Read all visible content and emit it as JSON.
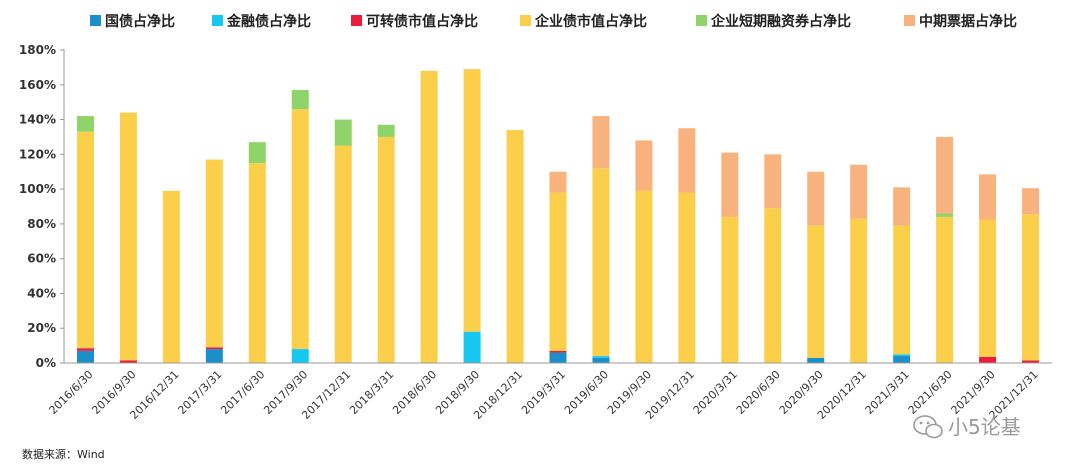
{
  "chart_data": {
    "type": "bar",
    "stacked": true,
    "title": "",
    "xlabel": "",
    "ylabel": "",
    "ylim": [
      0,
      180
    ],
    "y_ticks": [
      "0%",
      "20%",
      "40%",
      "60%",
      "80%",
      "100%",
      "120%",
      "140%",
      "160%",
      "180%"
    ],
    "grid": false,
    "legend_position": "top",
    "categories": [
      "2016/6/30",
      "2016/9/30",
      "2016/12/31",
      "2017/3/31",
      "2017/6/30",
      "2017/9/30",
      "2017/12/31",
      "2018/3/31",
      "2018/6/30",
      "2018/9/30",
      "2018/12/31",
      "2019/3/31",
      "2019/6/30",
      "2019/9/30",
      "2019/12/31",
      "2020/3/31",
      "2020/6/30",
      "2020/9/30",
      "2020/12/31",
      "2021/3/31",
      "2021/6/30",
      "2021/9/30",
      "2021/12/31"
    ],
    "series": [
      {
        "name": "国债占净比",
        "color": "#1a8fc9",
        "values": [
          7,
          0,
          0,
          8,
          0,
          0,
          0,
          0,
          0,
          0,
          0,
          6,
          3,
          0,
          0,
          0,
          0,
          3,
          0,
          4,
          0,
          0,
          0
        ]
      },
      {
        "name": "金融债占净比",
        "color": "#16c8f0",
        "values": [
          0,
          0,
          0,
          0,
          0,
          8,
          0,
          0,
          0,
          18,
          0,
          0,
          1,
          0,
          0,
          0,
          0,
          0,
          0,
          1,
          0,
          0,
          0
        ]
      },
      {
        "name": "可转债市值占净比",
        "color": "#ec1c3c",
        "values": [
          1.5,
          1.5,
          0,
          1,
          0,
          0,
          0,
          0,
          0,
          0,
          0,
          1,
          0,
          0,
          0,
          0,
          0,
          0,
          0,
          0,
          0,
          3.5,
          1.5
        ]
      },
      {
        "name": "企业债市值占净比",
        "color": "#fbcf4a",
        "values": [
          124.5,
          142.5,
          99,
          108,
          115,
          138,
          125,
          130,
          168,
          151,
          134,
          91,
          108,
          99,
          98,
          84,
          89,
          76,
          83,
          74,
          84,
          79,
          84
        ]
      },
      {
        "name": "企业短期融资券占净比",
        "color": "#8fd46a",
        "values": [
          9,
          0,
          0,
          0,
          12,
          11,
          15,
          7,
          0,
          0,
          0,
          0,
          0,
          0,
          0,
          0,
          0,
          0,
          0,
          0,
          2,
          0,
          0
        ]
      },
      {
        "name": "中期票据占净比",
        "color": "#f7b27e",
        "values": [
          0,
          0,
          0,
          0,
          0,
          0,
          0,
          0,
          0,
          0,
          0,
          12,
          30,
          29,
          37,
          37,
          31,
          31,
          31,
          22,
          44,
          26,
          15
        ]
      }
    ]
  },
  "source": "数据来源：Wind",
  "watermark": "小5论基"
}
